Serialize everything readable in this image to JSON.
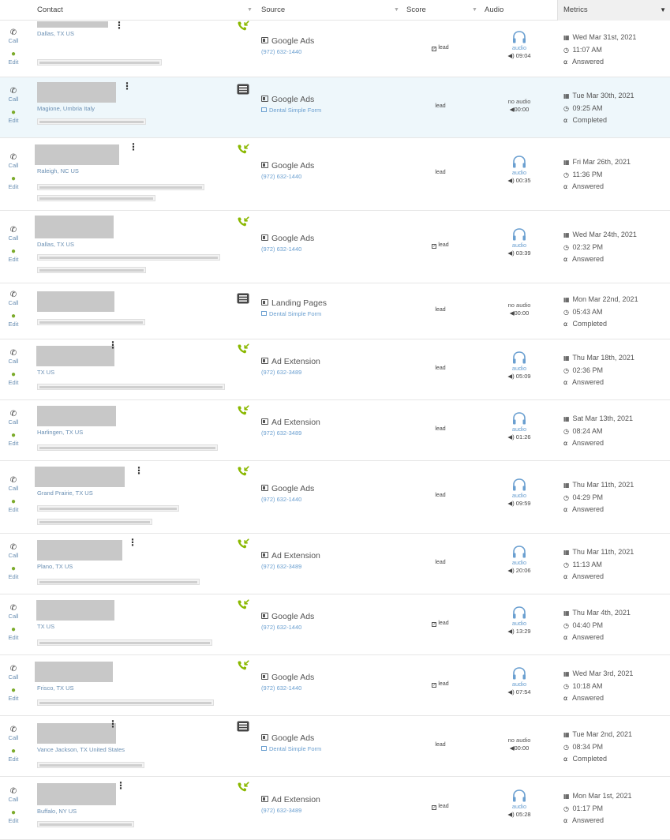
{
  "header": {
    "contact": "Contact",
    "source": "Source",
    "score": "Score",
    "audio": "Audio",
    "metrics": "Metrics"
  },
  "actions": {
    "call": "Call",
    "edit": "Edit"
  },
  "icons": {
    "call": "phone-icon",
    "edit": "person-icon",
    "incoming": "incoming-call-icon",
    "form": "form-list-icon",
    "audio": "headphones-icon",
    "date": "calendar-icon",
    "time": "clock-icon",
    "status": "phone-hangup-icon",
    "volume": "volume-icon"
  },
  "colors": {
    "incoming_green": "#8ab800",
    "link_blue": "#6a9fd0",
    "highlight_row": "#eef7fb"
  },
  "rows": [
    {
      "location": "Dallas, TX US",
      "type": "call",
      "source": "Google Ads",
      "source_sub": "(972) 632-1440",
      "score": "lead",
      "score_checked": true,
      "audio_label": "audio",
      "duration": "09:04",
      "date": "Wed Mar 31st, 2021",
      "time": "11:07 AM",
      "status": "Answered"
    },
    {
      "location": "Magione, Umbria Italy",
      "type": "form",
      "source": "Google Ads",
      "source_sub": "Dental Simple Form",
      "score": "lead",
      "score_checked": false,
      "audio_label": "no audio",
      "duration": "00:00",
      "date": "Tue Mar 30th, 2021",
      "time": "09:25 AM",
      "status": "Completed"
    },
    {
      "location": "Raleigh, NC US",
      "type": "call",
      "source": "Google Ads",
      "source_sub": "(972) 632-1440",
      "score": "lead",
      "score_checked": false,
      "audio_label": "audio",
      "duration": "00:35",
      "date": "Fri Mar 26th, 2021",
      "time": "11:36 PM",
      "status": "Answered"
    },
    {
      "location": "Dallas, TX US",
      "type": "call",
      "source": "Google Ads",
      "source_sub": "(972) 632-1440",
      "score": "lead",
      "score_checked": true,
      "audio_label": "audio",
      "duration": "03:39",
      "date": "Wed Mar 24th, 2021",
      "time": "02:32 PM",
      "status": "Answered"
    },
    {
      "location": "",
      "type": "form",
      "source": "Landing Pages",
      "source_sub": "Dental Simple Form",
      "score": "lead",
      "score_checked": false,
      "audio_label": "no audio",
      "duration": "00:00",
      "date": "Mon Mar 22nd, 2021",
      "time": "05:43 AM",
      "status": "Completed"
    },
    {
      "location": "TX US",
      "type": "call",
      "source": "Ad Extension",
      "source_sub": "(972) 632-3489",
      "score": "lead",
      "score_checked": false,
      "audio_label": "audio",
      "duration": "05:09",
      "date": "Thu Mar 18th, 2021",
      "time": "02:36 PM",
      "status": "Answered"
    },
    {
      "location": "Harlingen, TX US",
      "type": "call",
      "source": "Ad Extension",
      "source_sub": "(972) 632-3489",
      "score": "lead",
      "score_checked": false,
      "audio_label": "audio",
      "duration": "01:26",
      "date": "Sat Mar 13th, 2021",
      "time": "08:24 AM",
      "status": "Answered"
    },
    {
      "location": "Grand Prairie, TX US",
      "type": "call",
      "source": "Google Ads",
      "source_sub": "(972) 632-1440",
      "score": "lead",
      "score_checked": false,
      "audio_label": "audio",
      "duration": "09:59",
      "date": "Thu Mar 11th, 2021",
      "time": "04:29 PM",
      "status": "Answered"
    },
    {
      "location": "Plano, TX US",
      "type": "call",
      "source": "Ad Extension",
      "source_sub": "(972) 632-3489",
      "score": "lead",
      "score_checked": false,
      "audio_label": "audio",
      "duration": "20:06",
      "date": "Thu Mar 11th, 2021",
      "time": "11:13 AM",
      "status": "Answered"
    },
    {
      "location": "TX US",
      "type": "call",
      "source": "Google Ads",
      "source_sub": "(972) 632-1440",
      "score": "lead",
      "score_checked": true,
      "audio_label": "audio",
      "duration": "13:29",
      "date": "Thu Mar 4th, 2021",
      "time": "04:40 PM",
      "status": "Answered"
    },
    {
      "location": "Frisco, TX US",
      "type": "call",
      "source": "Google Ads",
      "source_sub": "(972) 632-1440",
      "score": "lead",
      "score_checked": true,
      "audio_label": "audio",
      "duration": "07:54",
      "date": "Wed Mar 3rd, 2021",
      "time": "10:18 AM",
      "status": "Answered"
    },
    {
      "location": "Vance Jackson, TX United States",
      "type": "form",
      "source": "Google Ads",
      "source_sub": "Dental Simple Form",
      "score": "lead",
      "score_checked": false,
      "audio_label": "no audio",
      "duration": "00:00",
      "date": "Tue Mar 2nd, 2021",
      "time": "08:34 PM",
      "status": "Completed"
    },
    {
      "location": "Buffalo, NY US",
      "type": "call",
      "source": "Ad Extension",
      "source_sub": "(972) 632-3489",
      "score": "lead",
      "score_checked": true,
      "audio_label": "audio",
      "duration": "05:28",
      "date": "Mon Mar 1st, 2021",
      "time": "01:17 PM",
      "status": "Answered"
    }
  ]
}
